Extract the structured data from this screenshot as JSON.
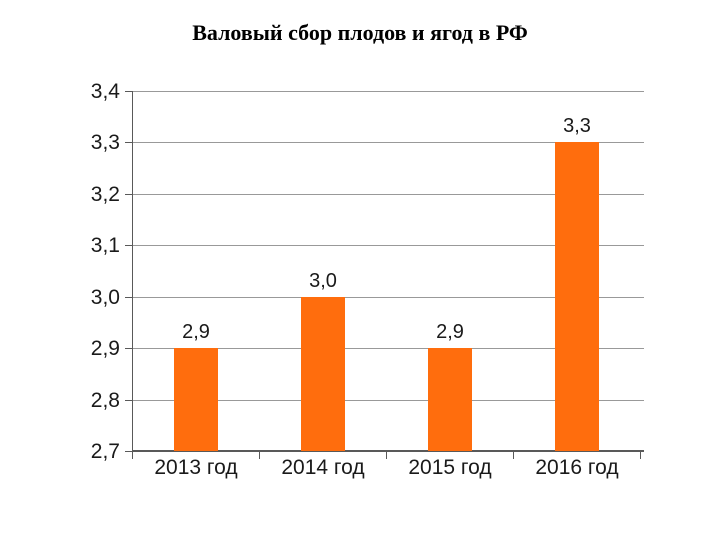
{
  "title": "Валовый сбор плодов и ягод в РФ",
  "colors": {
    "bar": "#ff6d0d",
    "gridline": "#999999",
    "axis": "#595959",
    "text": "#1a1a1a",
    "background": "#ffffff"
  },
  "chart_data": {
    "type": "bar",
    "title": "Валовый сбор плодов и ягод в РФ",
    "categories": [
      "2013 год",
      "2014 год",
      "2015 год",
      "2016 год"
    ],
    "values": [
      2.9,
      3.0,
      2.9,
      3.3
    ],
    "value_labels": [
      "2,9",
      "3,0",
      "2,9",
      "3,3"
    ],
    "xlabel": "",
    "ylabel": "",
    "ylim": [
      2.7,
      3.4
    ],
    "ytick_step": 0.1,
    "ytick_labels": [
      "2,7",
      "2,8",
      "2,9",
      "3,0",
      "3,1",
      "3,2",
      "3,3",
      "3,4"
    ],
    "grid": true,
    "legend": false,
    "decimal_separator": ","
  }
}
